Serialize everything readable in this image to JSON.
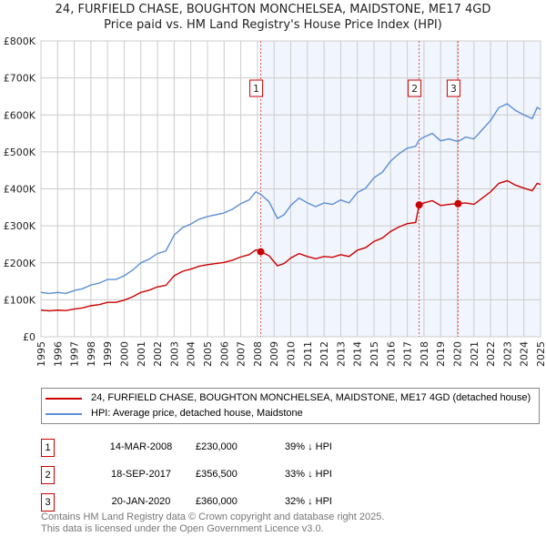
{
  "chart_data": {
    "type": "line",
    "title": "24, FURFIELD CHASE, BOUGHTON MONCHELSEA, MAIDSTONE, ME17 4GD",
    "subtitle": "Price paid vs. HM Land Registry's House Price Index (HPI)",
    "xlim": [
      1995,
      2025
    ],
    "ylim": [
      0,
      800000
    ],
    "y_ticks": [
      {
        "v": 0,
        "label": "£0"
      },
      {
        "v": 100000,
        "label": "£100K"
      },
      {
        "v": 200000,
        "label": "£200K"
      },
      {
        "v": 300000,
        "label": "£300K"
      },
      {
        "v": 400000,
        "label": "£400K"
      },
      {
        "v": 500000,
        "label": "£500K"
      },
      {
        "v": 600000,
        "label": "£600K"
      },
      {
        "v": 700000,
        "label": "£700K"
      },
      {
        "v": 800000,
        "label": "£800K"
      }
    ],
    "x_ticks": [
      "1995",
      "1996",
      "1997",
      "1998",
      "1999",
      "2000",
      "2001",
      "2002",
      "2003",
      "2004",
      "2005",
      "2006",
      "2007",
      "2008",
      "2009",
      "2010",
      "2011",
      "2012",
      "2013",
      "2014",
      "2015",
      "2016",
      "2017",
      "2018",
      "2019",
      "2020",
      "2021",
      "2022",
      "2023",
      "2024",
      "2025"
    ],
    "grid": true,
    "x": [
      1995,
      1995.5,
      1996,
      1996.5,
      1997,
      1997.5,
      1998,
      1998.5,
      1999,
      1999.5,
      2000,
      2000.5,
      2001,
      2001.5,
      2002,
      2002.5,
      2003,
      2003.5,
      2004,
      2004.5,
      2005,
      2005.5,
      2006,
      2006.5,
      2007,
      2007.5,
      2007.9,
      2008.2,
      2008.7,
      2009.2,
      2009.6,
      2010,
      2010.5,
      2011,
      2011.5,
      2012,
      2012.5,
      2013,
      2013.5,
      2014,
      2014.5,
      2015,
      2015.5,
      2016,
      2016.5,
      2017,
      2017.5,
      2017.71,
      2018,
      2018.5,
      2019,
      2019.5,
      2020.05,
      2020.5,
      2021,
      2021.5,
      2022,
      2022.5,
      2023,
      2023.5,
      2024,
      2024.5,
      2024.8,
      2025
    ],
    "series": [
      {
        "name": "24, FURFIELD CHASE, BOUGHTON MONCHELSEA, MAIDSTONE, ME17 4GD (detached house)",
        "color": "#cc0000",
        "values": [
          72000,
          70000,
          72000,
          71000,
          75000,
          78000,
          84000,
          87000,
          93000,
          93000,
          99000,
          108000,
          120000,
          126000,
          135000,
          139000,
          165000,
          177000,
          183000,
          191000,
          195000,
          198000,
          201000,
          207000,
          216000,
          222000,
          235000,
          230000,
          219000,
          192000,
          198000,
          213000,
          225000,
          217000,
          211000,
          217000,
          215000,
          222000,
          217000,
          234000,
          241000,
          258000,
          267000,
          285000,
          297000,
          306000,
          309000,
          356500,
          362000,
          368000,
          355000,
          358000,
          360000,
          362000,
          358000,
          375000,
          392000,
          415000,
          422000,
          410000,
          402000,
          395000,
          415000,
          412000
        ]
      },
      {
        "name": "HPI: Average price, detached house, Maidstone",
        "color": "#5b8fd6",
        "values": [
          120000,
          117000,
          120000,
          117000,
          125000,
          130000,
          140000,
          145000,
          155000,
          155000,
          165000,
          180000,
          200000,
          210000,
          225000,
          232000,
          275000,
          295000,
          305000,
          318000,
          325000,
          330000,
          335000,
          345000,
          360000,
          370000,
          392000,
          385000,
          365000,
          320000,
          330000,
          355000,
          375000,
          362000,
          352000,
          362000,
          358000,
          370000,
          362000,
          390000,
          402000,
          430000,
          445000,
          475000,
          495000,
          510000,
          515000,
          533000,
          540000,
          550000,
          530000,
          535000,
          528000,
          540000,
          535000,
          560000,
          585000,
          620000,
          630000,
          612000,
          600000,
          590000,
          620000,
          615000
        ]
      }
    ],
    "shaded_from": 2008.2,
    "sales": [
      {
        "n": "1",
        "x": 2008.2,
        "price": 230000,
        "date": "14-MAR-2008",
        "price_label": "£230,000",
        "hpi": "39% ↓ HPI"
      },
      {
        "n": "2",
        "x": 2017.71,
        "price": 356500,
        "date": "18-SEP-2017",
        "price_label": "£356,500",
        "hpi": "33% ↓ HPI"
      },
      {
        "n": "3",
        "x": 2020.05,
        "price": 360000,
        "date": "20-JAN-2020",
        "price_label": "£360,000",
        "hpi": "32% ↓ HPI"
      }
    ],
    "legend_position": "bottom"
  },
  "footer": {
    "line1": "Contains HM Land Registry data © Crown copyright and database right 2025.",
    "line2": "This data is licensed under the Open Government Licence v3.0."
  }
}
